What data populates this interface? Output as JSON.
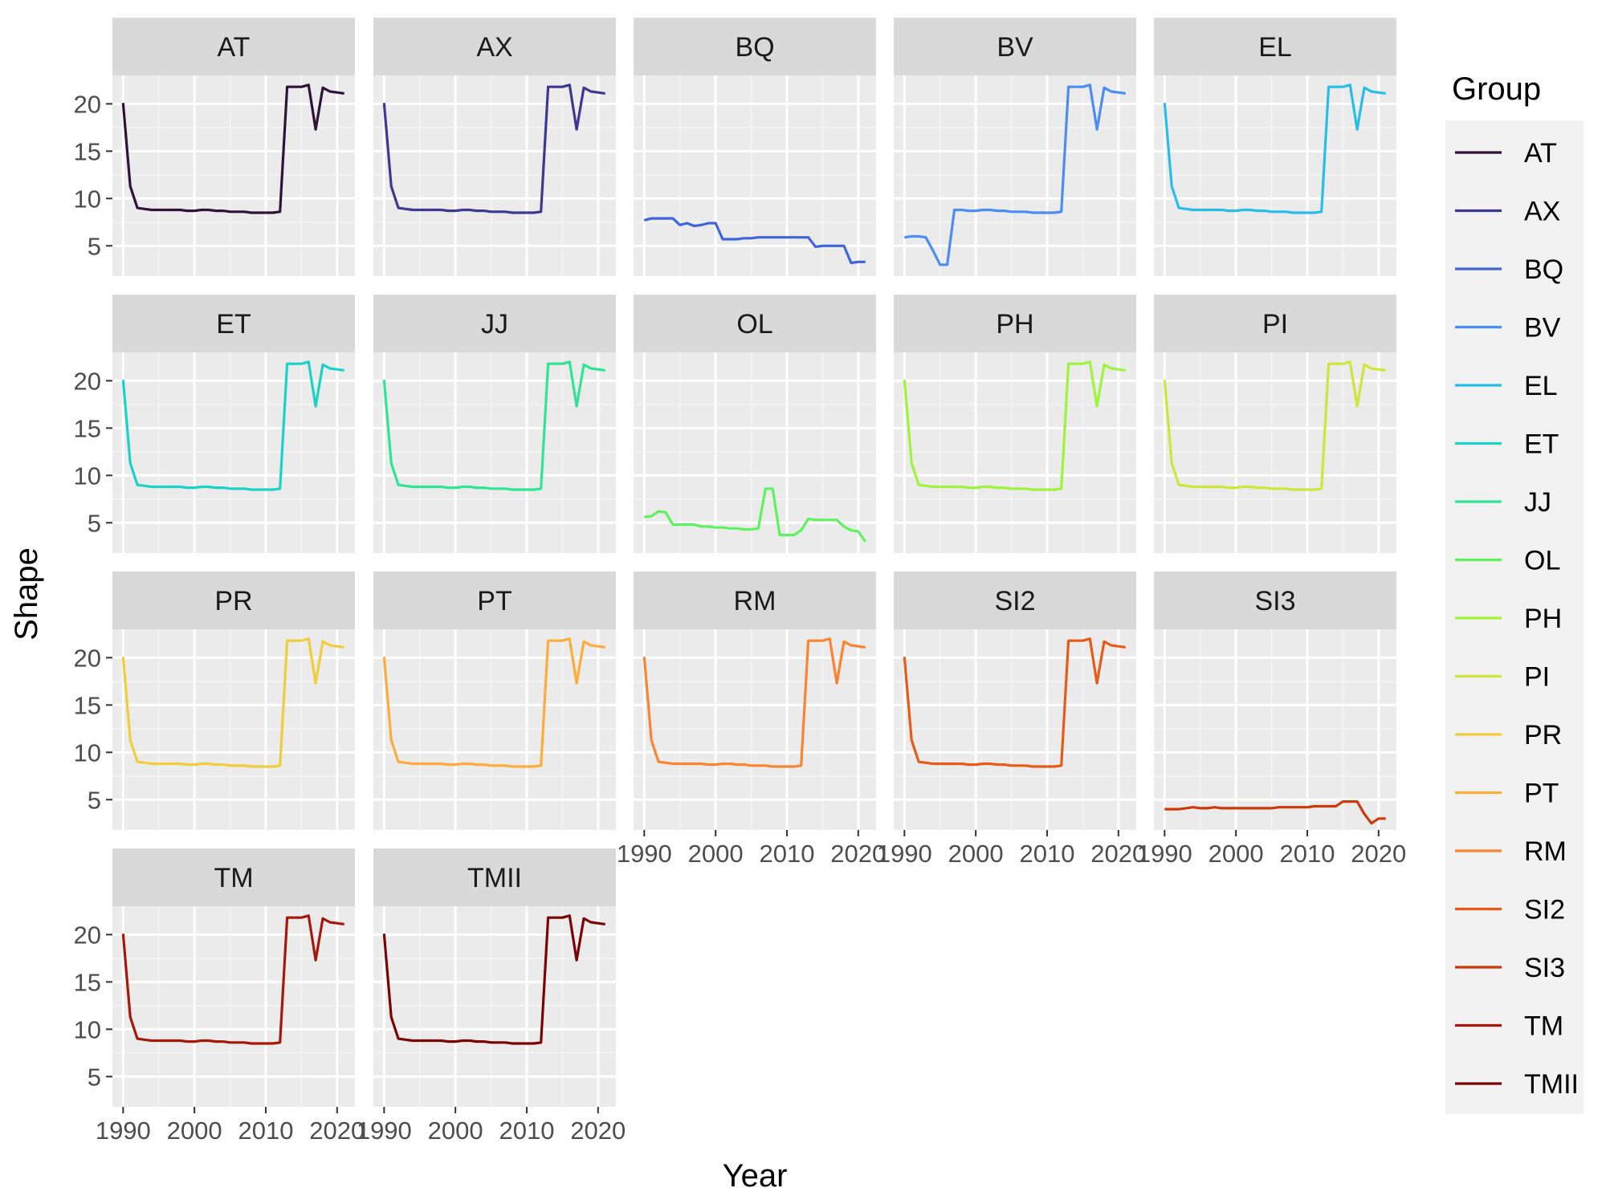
{
  "chart_data": {
    "type": "line",
    "facet": "wrap",
    "xlabel": "Year",
    "ylabel": "Shape",
    "legend_title": "Group",
    "legend_position": "right",
    "x_ticks": [
      1990,
      2000,
      2010,
      2020
    ],
    "y_ticks": [
      5,
      10,
      15,
      20
    ],
    "xlim": [
      1988.5,
      2022.5
    ],
    "ylim": [
      1.8,
      23.0
    ],
    "grid": true,
    "x": [
      1990,
      1991,
      1992,
      1993,
      1994,
      1995,
      1996,
      1997,
      1998,
      1999,
      2000,
      2001,
      2002,
      2003,
      2004,
      2005,
      2006,
      2007,
      2008,
      2009,
      2010,
      2011,
      2012,
      2013,
      2014,
      2015,
      2016,
      2017,
      2018,
      2019,
      2020,
      2021
    ],
    "series": [
      {
        "name": "AT",
        "color": "#30123b",
        "values": [
          20.1,
          11.3,
          9.0,
          8.9,
          8.8,
          8.8,
          8.8,
          8.8,
          8.8,
          8.7,
          8.7,
          8.8,
          8.8,
          8.7,
          8.7,
          8.6,
          8.6,
          8.6,
          8.5,
          8.5,
          8.5,
          8.5,
          8.6,
          21.8,
          21.8,
          21.8,
          22.0,
          17.3,
          21.7,
          21.3,
          21.2,
          21.1
        ]
      },
      {
        "name": "AX",
        "color": "#3e3891",
        "values": [
          20.1,
          11.3,
          9.0,
          8.9,
          8.8,
          8.8,
          8.8,
          8.8,
          8.8,
          8.7,
          8.7,
          8.8,
          8.8,
          8.7,
          8.7,
          8.6,
          8.6,
          8.6,
          8.5,
          8.5,
          8.5,
          8.5,
          8.6,
          21.8,
          21.8,
          21.8,
          22.0,
          17.3,
          21.7,
          21.3,
          21.2,
          21.1
        ]
      },
      {
        "name": "BQ",
        "color": "#4065d9",
        "values": [
          7.7,
          7.9,
          7.9,
          7.9,
          7.9,
          7.2,
          7.4,
          7.1,
          7.2,
          7.4,
          7.4,
          5.7,
          5.7,
          5.7,
          5.8,
          5.8,
          5.9,
          5.9,
          5.9,
          5.9,
          5.9,
          5.9,
          5.9,
          5.9,
          4.9,
          5.0,
          5.0,
          5.0,
          5.0,
          3.2,
          3.3,
          3.3
        ]
      },
      {
        "name": "BV",
        "color": "#4a8df4",
        "values": [
          5.9,
          6.0,
          6.0,
          5.9,
          4.5,
          3.0,
          3.0,
          8.8,
          8.8,
          8.7,
          8.7,
          8.8,
          8.8,
          8.7,
          8.7,
          8.6,
          8.6,
          8.6,
          8.5,
          8.5,
          8.5,
          8.5,
          8.6,
          21.8,
          21.8,
          21.8,
          22.0,
          17.3,
          21.7,
          21.3,
          21.2,
          21.1
        ]
      },
      {
        "name": "EL",
        "color": "#27bde9",
        "values": [
          20.1,
          11.3,
          9.0,
          8.9,
          8.8,
          8.8,
          8.8,
          8.8,
          8.8,
          8.7,
          8.7,
          8.8,
          8.8,
          8.7,
          8.7,
          8.6,
          8.6,
          8.6,
          8.5,
          8.5,
          8.5,
          8.5,
          8.6,
          21.8,
          21.8,
          21.8,
          22.0,
          17.3,
          21.7,
          21.3,
          21.2,
          21.1
        ]
      },
      {
        "name": "ET",
        "color": "#1ad2c8",
        "values": [
          20.1,
          11.3,
          9.0,
          8.9,
          8.8,
          8.8,
          8.8,
          8.8,
          8.8,
          8.7,
          8.7,
          8.8,
          8.8,
          8.7,
          8.7,
          8.6,
          8.6,
          8.6,
          8.5,
          8.5,
          8.5,
          8.5,
          8.6,
          21.8,
          21.8,
          21.8,
          22.0,
          17.3,
          21.7,
          21.3,
          21.2,
          21.1
        ]
      },
      {
        "name": "JJ",
        "color": "#2ee594",
        "values": [
          20.1,
          11.3,
          9.0,
          8.9,
          8.8,
          8.8,
          8.8,
          8.8,
          8.8,
          8.7,
          8.7,
          8.8,
          8.8,
          8.7,
          8.7,
          8.6,
          8.6,
          8.6,
          8.5,
          8.5,
          8.5,
          8.5,
          8.6,
          21.8,
          21.8,
          21.8,
          22.0,
          17.3,
          21.7,
          21.3,
          21.2,
          21.1
        ]
      },
      {
        "name": "OL",
        "color": "#5ff25f",
        "values": [
          5.6,
          5.7,
          6.2,
          6.1,
          4.8,
          4.8,
          4.8,
          4.8,
          4.6,
          4.6,
          4.5,
          4.5,
          4.4,
          4.4,
          4.3,
          4.3,
          4.4,
          8.6,
          8.6,
          3.7,
          3.7,
          3.7,
          4.2,
          5.4,
          5.3,
          5.3,
          5.3,
          5.3,
          4.6,
          4.2,
          4.1,
          3.0
        ]
      },
      {
        "name": "PH",
        "color": "#9ef43a",
        "values": [
          20.1,
          11.3,
          9.0,
          8.9,
          8.8,
          8.8,
          8.8,
          8.8,
          8.8,
          8.7,
          8.7,
          8.8,
          8.8,
          8.7,
          8.7,
          8.6,
          8.6,
          8.6,
          8.5,
          8.5,
          8.5,
          8.5,
          8.6,
          21.8,
          21.8,
          21.8,
          22.0,
          17.3,
          21.7,
          21.3,
          21.2,
          21.1
        ]
      },
      {
        "name": "PI",
        "color": "#cde639",
        "values": [
          20.1,
          11.3,
          9.0,
          8.9,
          8.8,
          8.8,
          8.8,
          8.8,
          8.8,
          8.7,
          8.7,
          8.8,
          8.8,
          8.7,
          8.7,
          8.6,
          8.6,
          8.6,
          8.5,
          8.5,
          8.5,
          8.5,
          8.6,
          21.8,
          21.8,
          21.8,
          22.0,
          17.3,
          21.7,
          21.3,
          21.2,
          21.1
        ]
      },
      {
        "name": "PR",
        "color": "#f0cd3a",
        "values": [
          20.1,
          11.3,
          9.0,
          8.9,
          8.8,
          8.8,
          8.8,
          8.8,
          8.8,
          8.7,
          8.7,
          8.8,
          8.8,
          8.7,
          8.7,
          8.6,
          8.6,
          8.6,
          8.5,
          8.5,
          8.5,
          8.5,
          8.6,
          21.8,
          21.8,
          21.8,
          22.0,
          17.3,
          21.7,
          21.3,
          21.2,
          21.1
        ]
      },
      {
        "name": "PT",
        "color": "#fdab3a",
        "values": [
          20.1,
          11.3,
          9.0,
          8.9,
          8.8,
          8.8,
          8.8,
          8.8,
          8.8,
          8.7,
          8.7,
          8.8,
          8.8,
          8.7,
          8.7,
          8.6,
          8.6,
          8.6,
          8.5,
          8.5,
          8.5,
          8.5,
          8.6,
          21.8,
          21.8,
          21.8,
          22.0,
          17.3,
          21.7,
          21.3,
          21.2,
          21.1
        ]
      },
      {
        "name": "RM",
        "color": "#f98431",
        "values": [
          20.1,
          11.3,
          9.0,
          8.9,
          8.8,
          8.8,
          8.8,
          8.8,
          8.8,
          8.7,
          8.7,
          8.8,
          8.8,
          8.7,
          8.7,
          8.6,
          8.6,
          8.6,
          8.5,
          8.5,
          8.5,
          8.5,
          8.6,
          21.8,
          21.8,
          21.8,
          22.0,
          17.3,
          21.7,
          21.3,
          21.2,
          21.1
        ]
      },
      {
        "name": "SI2",
        "color": "#e85a17",
        "values": [
          20.1,
          11.3,
          9.0,
          8.9,
          8.8,
          8.8,
          8.8,
          8.8,
          8.8,
          8.7,
          8.7,
          8.8,
          8.8,
          8.7,
          8.7,
          8.6,
          8.6,
          8.6,
          8.5,
          8.5,
          8.5,
          8.5,
          8.6,
          21.8,
          21.8,
          21.8,
          22.0,
          17.3,
          21.7,
          21.3,
          21.2,
          21.1
        ]
      },
      {
        "name": "SI3",
        "color": "#cc3a0a",
        "values": [
          4.0,
          4.0,
          4.0,
          4.1,
          4.2,
          4.1,
          4.1,
          4.2,
          4.1,
          4.1,
          4.1,
          4.1,
          4.1,
          4.1,
          4.1,
          4.1,
          4.2,
          4.2,
          4.2,
          4.2,
          4.2,
          4.3,
          4.3,
          4.3,
          4.3,
          4.8,
          4.8,
          4.8,
          3.5,
          2.5,
          3.0,
          3.0
        ]
      },
      {
        "name": "TM",
        "color": "#a5180a",
        "values": [
          20.1,
          11.3,
          9.0,
          8.9,
          8.8,
          8.8,
          8.8,
          8.8,
          8.8,
          8.7,
          8.7,
          8.8,
          8.8,
          8.7,
          8.7,
          8.6,
          8.6,
          8.6,
          8.5,
          8.5,
          8.5,
          8.5,
          8.6,
          21.8,
          21.8,
          21.8,
          22.0,
          17.3,
          21.7,
          21.3,
          21.2,
          21.1
        ]
      },
      {
        "name": "TMII",
        "color": "#7a0403",
        "values": [
          20.1,
          11.3,
          9.0,
          8.9,
          8.8,
          8.8,
          8.8,
          8.8,
          8.8,
          8.7,
          8.7,
          8.8,
          8.8,
          8.7,
          8.7,
          8.6,
          8.6,
          8.6,
          8.5,
          8.5,
          8.5,
          8.5,
          8.6,
          21.8,
          21.8,
          21.8,
          22.0,
          17.3,
          21.7,
          21.3,
          21.2,
          21.1
        ]
      }
    ]
  }
}
